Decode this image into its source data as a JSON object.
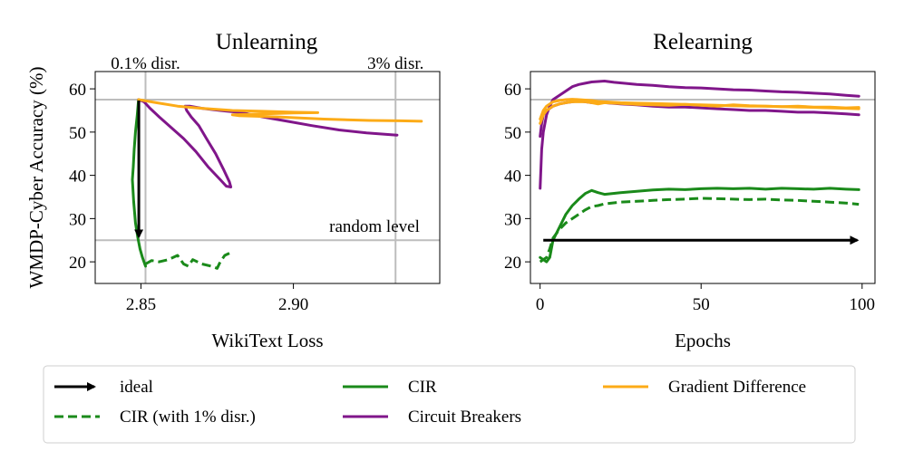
{
  "colors": {
    "cir": "#1a8a1a",
    "cb": "#80168a",
    "gd": "#fcab17",
    "ideal": "#000000",
    "ref": "#bdbdbd"
  },
  "chart_data": [
    {
      "type": "line",
      "title": "Unlearning",
      "xlabel": "WikiText Loss",
      "ylabel": "WMDP-Cyber Accuracy (%)",
      "xlim": [
        2.835,
        2.948
      ],
      "ylim": [
        15,
        64
      ],
      "xticks": [
        2.85,
        2.9
      ],
      "xtick_labels": [
        "2.85",
        "2.90"
      ],
      "yticks": [
        20,
        30,
        40,
        50,
        60
      ],
      "ytick_labels": [
        "20",
        "30",
        "40",
        "50",
        "60"
      ],
      "reference_lines": {
        "horizontal": [
          {
            "y": 57.5
          },
          {
            "y": 25,
            "label": "random level"
          }
        ],
        "vertical": [
          {
            "x": 2.8515,
            "label": "0.1% disr."
          },
          {
            "x": 2.9335,
            "label": "3% disr."
          }
        ]
      },
      "series": [
        {
          "name": "CIR",
          "style": "solid",
          "color_key": "cir",
          "x": [
            2.8492,
            2.8488,
            2.8482,
            2.8478,
            2.8475,
            2.8472,
            2.8476,
            2.8482,
            2.849,
            2.8497,
            2.8505,
            2.851,
            2.8515
          ],
          "y": [
            57.5,
            54,
            50,
            46,
            42,
            39,
            34,
            29,
            25.5,
            23,
            21,
            20,
            19
          ]
        },
        {
          "name": "CIR (with 1% disr.)",
          "style": "dashed",
          "color_key": "cir",
          "x": [
            2.8515,
            2.8535,
            2.856,
            2.859,
            2.862,
            2.864,
            2.8655,
            2.867,
            2.87,
            2.873,
            2.875,
            2.876,
            2.8775,
            2.879
          ],
          "y": [
            19.5,
            20.3,
            20.0,
            20.5,
            21.5,
            19.5,
            19.0,
            20.5,
            19.5,
            19.0,
            18.5,
            20.0,
            21.5,
            22.0
          ]
        },
        {
          "name": "Circuit Breakers",
          "style": "solid",
          "color_key": "cb",
          "x": [
            2.8492,
            2.851,
            2.853,
            2.856,
            2.86,
            2.864,
            2.868,
            2.872,
            2.876,
            2.878,
            2.8795,
            2.879,
            2.877,
            2.8745,
            2.8715,
            2.869,
            2.8665,
            2.865,
            2.8645,
            2.866,
            2.87,
            2.876,
            2.883,
            2.89,
            2.898,
            2.906,
            2.915,
            2.924,
            2.93,
            2.934
          ],
          "y": [
            57.5,
            57.0,
            55.5,
            53.5,
            51.0,
            48.5,
            45.5,
            42.0,
            39.0,
            37.5,
            37.3,
            38.5,
            41.5,
            45.0,
            48.5,
            51.5,
            53.5,
            55.0,
            56.0,
            56.0,
            55.5,
            55.0,
            54.5,
            53.5,
            52.5,
            51.5,
            50.5,
            49.8,
            49.5,
            49.3
          ]
        },
        {
          "name": "Gradient Difference",
          "style": "solid",
          "color_key": "gd",
          "x": [
            2.8492,
            2.855,
            2.862,
            2.87,
            2.88,
            2.89,
            2.9,
            2.908,
            2.9,
            2.89,
            2.88,
            2.882,
            2.895,
            2.91,
            2.925,
            2.935,
            2.942
          ],
          "y": [
            57.5,
            56.8,
            56.0,
            55.5,
            55.0,
            54.8,
            54.6,
            54.5,
            54.4,
            54.2,
            54.0,
            53.8,
            53.5,
            53.0,
            52.7,
            52.6,
            52.5
          ]
        },
        {
          "name": "ideal",
          "style": "arrow",
          "color_key": "ideal",
          "x": [
            2.8493,
            2.8493
          ],
          "y": [
            57.3,
            25.8
          ]
        }
      ]
    },
    {
      "type": "line",
      "title": "Relearning",
      "xlabel": "Epochs",
      "ylabel": "",
      "xlim": [
        -3,
        104
      ],
      "ylim": [
        15,
        64
      ],
      "xticks": [
        0,
        50,
        100
      ],
      "xtick_labels": [
        "0",
        "50",
        "100"
      ],
      "yticks": [
        20,
        30,
        40,
        50,
        60
      ],
      "ytick_labels": [
        "20",
        "30",
        "40",
        "50",
        "60"
      ],
      "reference_lines": {
        "horizontal": [
          {
            "y": 57.5
          }
        ],
        "vertical": []
      },
      "series": [
        {
          "name": "CIR",
          "style": "solid",
          "color_key": "cir",
          "x": [
            0,
            1,
            2,
            3,
            4,
            6,
            8,
            10,
            12,
            14,
            16,
            18,
            20,
            25,
            30,
            35,
            40,
            45,
            50,
            55,
            60,
            65,
            70,
            75,
            80,
            85,
            90,
            95,
            99
          ],
          "y": [
            21,
            20.5,
            20,
            21,
            25,
            28,
            31,
            33,
            34.5,
            35.8,
            36.5,
            36,
            35.6,
            36,
            36.3,
            36.6,
            36.8,
            36.7,
            36.9,
            37,
            36.9,
            37,
            36.8,
            37,
            36.9,
            36.8,
            37,
            36.8,
            36.7
          ]
        },
        {
          "name": "CIR (with 1% disr.)",
          "style": "dashed",
          "color_key": "cir",
          "x": [
            0,
            1,
            2,
            3,
            4,
            6,
            8,
            10,
            12,
            14,
            16,
            18,
            20,
            25,
            30,
            35,
            40,
            45,
            50,
            55,
            60,
            65,
            70,
            75,
            80,
            85,
            90,
            95,
            99
          ],
          "y": [
            20,
            20.5,
            21,
            23,
            25.5,
            27.5,
            29,
            30,
            31,
            32,
            32.8,
            33,
            33.4,
            33.8,
            34,
            34.2,
            34.4,
            34.5,
            34.7,
            34.6,
            34.5,
            34.4,
            34.5,
            34.3,
            34.2,
            34,
            33.8,
            33.6,
            33.3
          ]
        },
        {
          "name": "Circuit Breakers",
          "style": "solid",
          "color_key": "cb",
          "x": [
            0,
            0.5,
            1,
            2,
            3,
            4,
            6,
            8,
            10,
            12,
            14,
            16,
            18,
            20,
            23,
            26,
            30,
            35,
            40,
            45,
            50,
            55,
            60,
            65,
            70,
            75,
            80,
            85,
            90,
            95,
            99
          ],
          "y": [
            37,
            46,
            50,
            54,
            56,
            57.5,
            58.5,
            59.5,
            60.5,
            61,
            61.3,
            61.6,
            61.7,
            61.8,
            61.5,
            61.3,
            61,
            60.8,
            60.5,
            60.3,
            60.2,
            60,
            59.8,
            59.7,
            59.5,
            59.3,
            59.2,
            59,
            58.8,
            58.5,
            58.3
          ]
        },
        {
          "name": "Circuit Breakers",
          "style": "solid",
          "color_key": "cb",
          "x": [
            0,
            0.5,
            1,
            2,
            3,
            4,
            6,
            8,
            10,
            12,
            14,
            16,
            18,
            20,
            25,
            30,
            35,
            40,
            45,
            50,
            55,
            60,
            65,
            70,
            75,
            80,
            85,
            90,
            95,
            99
          ],
          "y": [
            49,
            52,
            54,
            55,
            55.5,
            56,
            56.5,
            56.8,
            57,
            57.2,
            57,
            56.8,
            57,
            56.8,
            56.5,
            56.3,
            56,
            55.8,
            55.8,
            55.6,
            55.4,
            55.2,
            55,
            55,
            54.8,
            54.6,
            54.6,
            54.4,
            54.2,
            54
          ]
        },
        {
          "name": "Gradient Difference",
          "style": "solid",
          "color_key": "gd",
          "x": [
            0,
            1,
            2,
            3,
            4,
            6,
            8,
            10,
            12,
            14,
            16,
            18,
            20,
            25,
            30,
            35,
            40,
            45,
            50,
            55,
            60,
            65,
            70,
            75,
            80,
            85,
            90,
            95,
            99
          ],
          "y": [
            52,
            54,
            55,
            55.5,
            56,
            56.5,
            56.8,
            57,
            57,
            57,
            56.8,
            56.5,
            56.8,
            56.6,
            56.4,
            56.3,
            56.2,
            56.4,
            56.2,
            56,
            56.3,
            56.1,
            56,
            55.9,
            56,
            55.8,
            55.8,
            55.6,
            55.7
          ]
        },
        {
          "name": "Gradient Difference",
          "style": "solid",
          "color_key": "gd",
          "x": [
            0,
            1,
            2,
            3,
            4,
            6,
            8,
            10,
            12,
            14,
            16,
            18,
            20,
            25,
            30,
            35,
            40,
            45,
            50,
            55,
            60,
            65,
            70,
            75,
            80,
            85,
            90,
            95,
            99
          ],
          "y": [
            53,
            55,
            56,
            56.5,
            57,
            57.3,
            57.5,
            57.6,
            57.5,
            57.4,
            57.3,
            57.1,
            57,
            56.8,
            56.7,
            56.6,
            56.5,
            56.4,
            56.3,
            56.2,
            56.1,
            56,
            56,
            55.9,
            55.8,
            55.7,
            55.6,
            55.5,
            55.4
          ]
        },
        {
          "name": "ideal",
          "style": "arrow",
          "color_key": "ideal",
          "x": [
            1,
            98.5
          ],
          "y": [
            25,
            25
          ]
        }
      ]
    }
  ],
  "legend": {
    "position": "bottom",
    "entries": [
      {
        "label": "ideal",
        "style": "arrow",
        "color_key": "ideal"
      },
      {
        "label": "CIR (with 1% disr.)",
        "style": "dashed",
        "color_key": "cir"
      },
      {
        "label": "CIR",
        "style": "solid",
        "color_key": "cir"
      },
      {
        "label": "Circuit Breakers",
        "style": "solid",
        "color_key": "cb"
      },
      {
        "label": "Gradient Difference",
        "style": "solid",
        "color_key": "gd"
      }
    ]
  }
}
